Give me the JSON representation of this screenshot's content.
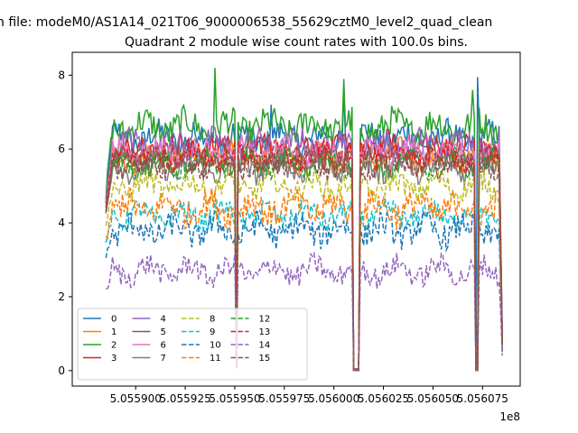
{
  "chart_data": {
    "type": "line",
    "suptitle": "n file: modeM0/AS1A14_021T06_9000006538_55629cztM0_level2_quad_clean",
    "title": "Quadrant 2 module wise count rates with 100.0s bins.",
    "xlabel": "",
    "ylabel": "",
    "x_offset_label": "1e8",
    "x_units_scale": 100000000,
    "x_range": [
      5.055885,
      5.056085
    ],
    "xlim": [
      5.055868,
      5.056094
    ],
    "ylim": [
      -0.42,
      8.62
    ],
    "x_ticks": [
      5.0559,
      5.055925,
      5.05595,
      5.055975,
      5.056,
      5.056025,
      5.05605,
      5.056075
    ],
    "x_tick_labels": [
      "5.055900",
      "5.055925",
      "5.055950",
      "5.055975",
      "5.056000",
      "5.056025",
      "5.056050",
      "5.056075"
    ],
    "y_ticks": [
      0,
      2,
      4,
      6,
      8
    ],
    "y_tick_labels": [
      "0",
      "2",
      "4",
      "6",
      "8"
    ],
    "gaps": [
      {
        "from": 5.0559505,
        "to": 5.0559515,
        "min": 0.05
      },
      {
        "from": 5.05601,
        "to": 5.056013,
        "min": 0.0
      },
      {
        "from": 5.056071,
        "to": 5.0560725,
        "min": 0.0
      }
    ],
    "series": [
      {
        "name": "0",
        "color": "#1f77b4",
        "dash": false,
        "mean": 6.3,
        "amp": 0.35,
        "start": 4.6,
        "end": 1.0,
        "peaks": [
          [
            5.0559685,
            7.2
          ],
          [
            5.056005,
            7.6
          ],
          [
            5.0560725,
            7.95
          ]
        ]
      },
      {
        "name": "1",
        "color": "#ff7f0e",
        "dash": false,
        "mean": 5.8,
        "amp": 0.35,
        "start": 4.3,
        "end": 0.9,
        "peaks": []
      },
      {
        "name": "2",
        "color": "#2ca02c",
        "dash": false,
        "mean": 6.6,
        "amp": 0.4,
        "start": 4.8,
        "end": 0.6,
        "peaks": [
          [
            5.05594,
            8.2
          ],
          [
            5.056005,
            7.9
          ],
          [
            5.05607,
            7.6
          ]
        ]
      },
      {
        "name": "3",
        "color": "#d62728",
        "dash": false,
        "mean": 6.0,
        "amp": 0.35,
        "start": 4.5,
        "end": 0.7,
        "peaks": []
      },
      {
        "name": "4",
        "color": "#9467bd",
        "dash": false,
        "mean": 6.1,
        "amp": 0.35,
        "start": 4.6,
        "end": 0.8,
        "peaks": []
      },
      {
        "name": "5",
        "color": "#8c564b",
        "dash": false,
        "mean": 5.7,
        "amp": 0.3,
        "start": 4.4,
        "end": 0.8,
        "peaks": []
      },
      {
        "name": "6",
        "color": "#e377c2",
        "dash": false,
        "mean": 5.9,
        "amp": 0.3,
        "start": 4.4,
        "end": 0.8,
        "peaks": []
      },
      {
        "name": "7",
        "color": "#7f7f7f",
        "dash": false,
        "mean": 5.5,
        "amp": 0.3,
        "start": 4.2,
        "end": 0.7,
        "peaks": []
      },
      {
        "name": "8",
        "color": "#bcbd22",
        "dash": true,
        "mean": 5.0,
        "amp": 0.3,
        "start": 4.0,
        "end": 0.6,
        "peaks": []
      },
      {
        "name": "9",
        "color": "#17becf",
        "dash": true,
        "mean": 4.2,
        "amp": 0.3,
        "start": 3.6,
        "end": 0.5,
        "peaks": []
      },
      {
        "name": "10",
        "color": "#1f77b4",
        "dash": true,
        "mean": 3.8,
        "amp": 0.35,
        "start": 3.0,
        "end": 0.5,
        "peaks": []
      },
      {
        "name": "11",
        "color": "#ff7f0e",
        "dash": true,
        "mean": 4.4,
        "amp": 0.4,
        "start": 3.5,
        "end": 0.5,
        "peaks": []
      },
      {
        "name": "12",
        "color": "#2ca02c",
        "dash": true,
        "mean": 5.6,
        "amp": 0.3,
        "start": 4.2,
        "end": 0.7,
        "peaks": []
      },
      {
        "name": "13",
        "color": "#d62728",
        "dash": true,
        "mean": 5.8,
        "amp": 0.3,
        "start": 4.3,
        "end": 0.7,
        "peaks": []
      },
      {
        "name": "14",
        "color": "#9467bd",
        "dash": true,
        "mean": 2.7,
        "amp": 0.3,
        "start": 2.2,
        "end": 0.4,
        "peaks": []
      },
      {
        "name": "15",
        "color": "#8c564b",
        "dash": true,
        "mean": 5.6,
        "amp": 0.3,
        "start": 4.2,
        "end": 0.7,
        "peaks": []
      }
    ],
    "legend_location": "lower-left",
    "legend_columns": 4,
    "grid": false
  }
}
